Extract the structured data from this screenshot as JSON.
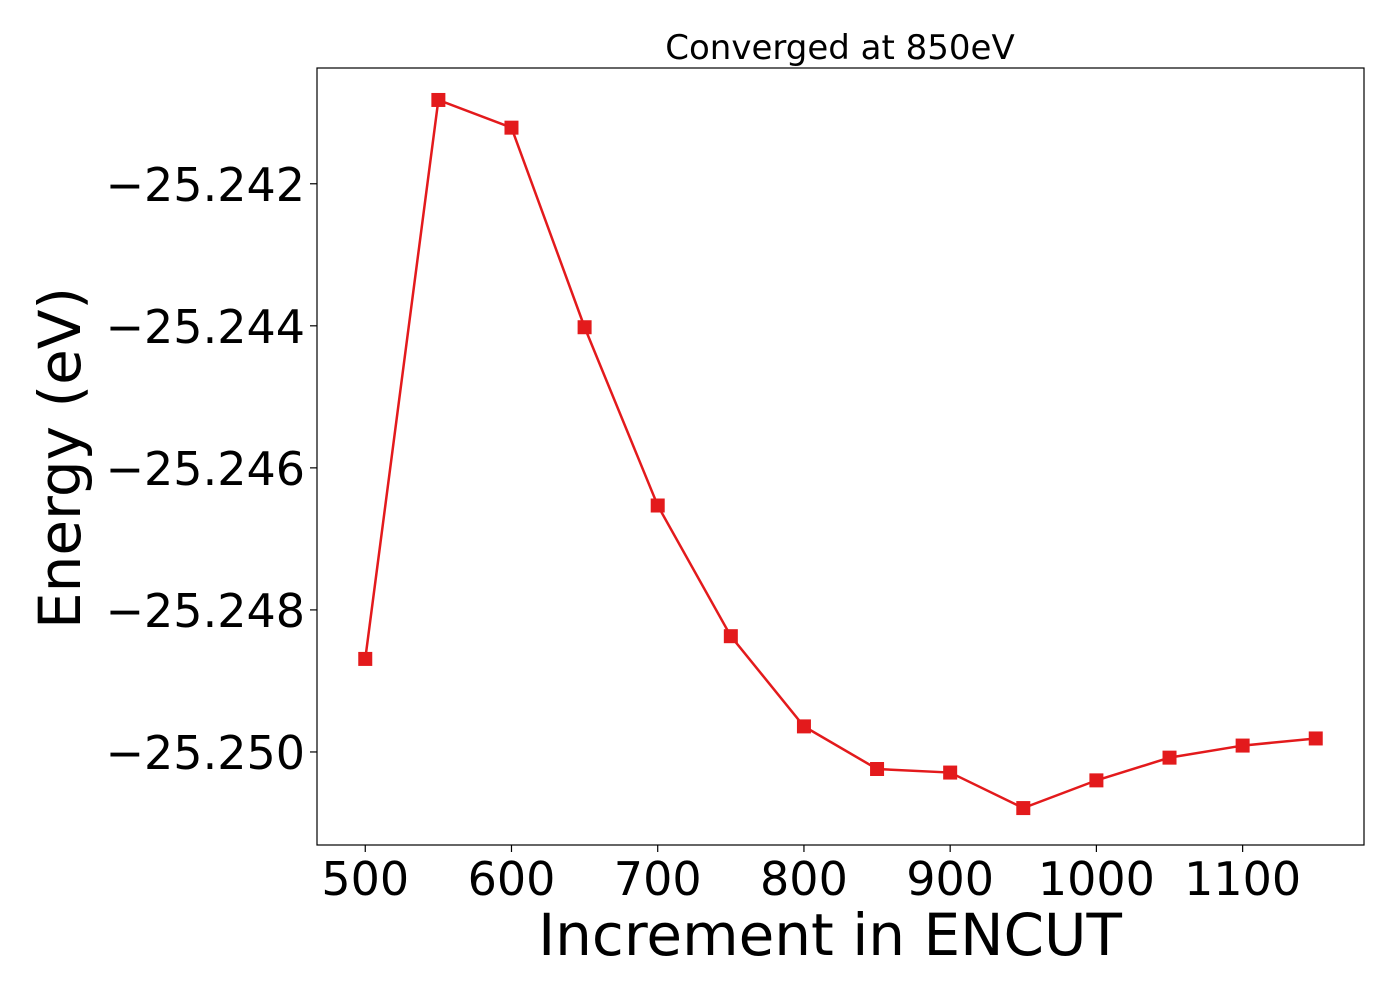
{
  "chart_data": {
    "type": "line",
    "title": "Converged at 850eV",
    "xlabel": "Increment in ENCUT",
    "ylabel": "Energy (eV)",
    "xlim": [
      467,
      1183
    ],
    "ylim": [
      -25.25131,
      -25.24037
    ],
    "xticks": [
      500,
      600,
      700,
      800,
      900,
      1000,
      1100
    ],
    "xtick_labels": [
      "500",
      "600",
      "700",
      "800",
      "900",
      "1000",
      "1100"
    ],
    "yticks": [
      -25.242,
      -25.244,
      -25.246,
      -25.248,
      -25.25
    ],
    "ytick_labels": [
      "−25.242",
      "−25.244",
      "−25.246",
      "−25.248",
      "−25.250"
    ],
    "grid": false,
    "legend": "none",
    "color": "#e31a1c",
    "marker": "square",
    "series": [
      {
        "x": [
          500,
          550,
          600,
          650,
          700,
          750,
          800,
          850,
          900,
          950,
          1000,
          1050,
          1100,
          1150
        ],
        "y": [
          -25.24869,
          -25.24082,
          -25.24121,
          -25.24402,
          -25.24653,
          -25.24837,
          -25.24964,
          -25.25024,
          -25.25029,
          -25.25079,
          -25.2504,
          -25.25008,
          -25.24991,
          -25.24981
        ]
      }
    ]
  }
}
